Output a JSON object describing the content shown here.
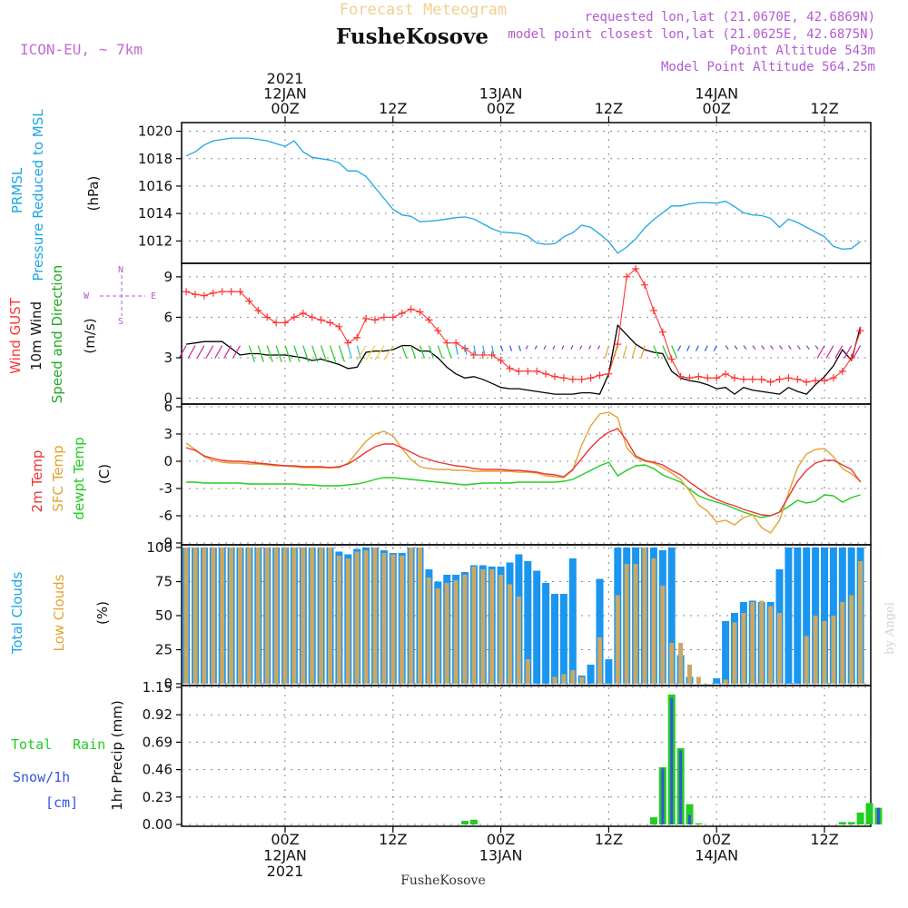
{
  "header": {
    "title": "Forecast Meteogram",
    "location": "FusheKosove",
    "model": "ICON-EU, ~ 7km",
    "requested": "requested lon,lat (21.0670E, 42.6869N)",
    "closest": "model point closest lon,lat (21.0625E, 42.6875N)",
    "point_alt": "Point Altitude 543m",
    "model_alt": "Model Point Altitude 564.25m",
    "footer_location": "FusheKosove",
    "credit": "by Angel"
  },
  "time_axis": {
    "top": [
      {
        "h": 0,
        "lines": [
          "2021",
          "12JAN",
          "00Z"
        ]
      },
      {
        "h": 12,
        "lines": [
          "12Z"
        ]
      },
      {
        "h": 24,
        "lines": [
          "13JAN",
          "00Z"
        ]
      },
      {
        "h": 36,
        "lines": [
          "12Z"
        ]
      },
      {
        "h": 48,
        "lines": [
          "14JAN",
          "00Z"
        ]
      },
      {
        "h": 60,
        "lines": [
          "12Z"
        ]
      }
    ],
    "bottom": [
      {
        "h": 0,
        "lines": [
          "00Z",
          "12JAN",
          "2021"
        ]
      },
      {
        "h": 12,
        "lines": [
          "12Z"
        ]
      },
      {
        "h": 24,
        "lines": [
          "00Z",
          "13JAN"
        ]
      },
      {
        "h": 36,
        "lines": [
          "12Z"
        ]
      },
      {
        "h": 48,
        "lines": [
          "00Z",
          "14JAN"
        ]
      },
      {
        "h": 60,
        "lines": [
          "12Z"
        ]
      }
    ]
  },
  "labels": {
    "prmsl": [
      "PRMSL",
      "Pressure Reduced to MSL",
      "(hPa)"
    ],
    "wind": [
      "Wind GUST",
      "10m Wind",
      "Speed and Direction",
      "(m/s)"
    ],
    "compass": [
      "N",
      "S",
      "W",
      "E"
    ],
    "temp": [
      "2m Temp",
      "SFC Temp",
      "dewpt Temp",
      "(C)"
    ],
    "cloud": [
      "Total Clouds",
      "Low Clouds",
      "(%)"
    ],
    "precip": [
      "Total",
      "Rain",
      "Snow/1h",
      "[cm]",
      "1hr Precip (mm)"
    ]
  },
  "colors": {
    "pressure": "#1ea6e6",
    "gust": "#ff3333",
    "wind": "#000000",
    "temp2m": "#ee3333",
    "sfc": "#e2a431",
    "dew": "#22cc22",
    "total_cloud": "#1a96f0",
    "low_cloud": "#c9a865",
    "rain": "#22cc22",
    "snow": "#3355dd",
    "axis_label_pressure": "#1ea6e6",
    "magenta": "#b45ad2"
  },
  "chart_data": [
    {
      "type": "line",
      "title": "PRMSL Pressure Reduced to MSL",
      "ylabel": "(hPa)",
      "ylim": [
        1010.5,
        1020.5
      ],
      "yticks": [
        1012,
        1014,
        1016,
        1018,
        1020
      ],
      "x_hours": [
        -11,
        -10,
        -9,
        -8,
        -7,
        -6,
        -5,
        -4,
        -3,
        -2,
        -1,
        0,
        1,
        2,
        3,
        4,
        5,
        6,
        7,
        8,
        9,
        10,
        11,
        12,
        13,
        14,
        15,
        16,
        17,
        18,
        19,
        20,
        21,
        22,
        23,
        24,
        25,
        26,
        27,
        28,
        29,
        30,
        31,
        32,
        33,
        34,
        35,
        36,
        37,
        38,
        39,
        40,
        41,
        42,
        43,
        44,
        45,
        46,
        47,
        48,
        49,
        50,
        51,
        52,
        53,
        54,
        55,
        56,
        57,
        58,
        59,
        60,
        61,
        62,
        63,
        64
      ],
      "series": [
        {
          "name": "PRMSL",
          "values": [
            1018.2,
            1018.5,
            1019.0,
            1019.3,
            1019.4,
            1019.5,
            1019.5,
            1019.5,
            1019.4,
            1019.3,
            1019.1,
            1018.9,
            1019.3,
            1018.5,
            1018.1,
            1018.0,
            1017.9,
            1017.7,
            1017.1,
            1017.1,
            1016.7,
            1015.9,
            1015.1,
            1014.3,
            1013.9,
            1013.8,
            1013.4,
            1013.45,
            1013.5,
            1013.6,
            1013.7,
            1013.75,
            1013.6,
            1013.25,
            1012.9,
            1012.65,
            1012.6,
            1012.55,
            1012.35,
            1011.85,
            1011.75,
            1011.8,
            1012.3,
            1012.6,
            1013.15,
            1013.0,
            1012.5,
            1011.95,
            1011.1,
            1011.55,
            1012.15,
            1012.95,
            1013.55,
            1014.05,
            1014.55,
            1014.55,
            1014.7,
            1014.8,
            1014.8,
            1014.75,
            1014.9,
            1014.5,
            1014.05,
            1013.9,
            1013.85,
            1013.65,
            1013.0,
            1013.6,
            1013.35,
            1013.0,
            1012.65,
            1012.3,
            1011.6,
            1011.4,
            1011.45,
            1011.95
          ]
        }
      ]
    },
    {
      "type": "line",
      "title": "Wind GUST / 10m Wind Speed and Direction",
      "ylabel": "(m/s)",
      "ylim": [
        -0.3,
        9.8
      ],
      "yticks": [
        0,
        3,
        6,
        9
      ],
      "x_hours": [
        -11,
        -10,
        -9,
        -8,
        -7,
        -6,
        -5,
        -4,
        -3,
        -2,
        -1,
        0,
        1,
        2,
        3,
        4,
        5,
        6,
        7,
        8,
        9,
        10,
        11,
        12,
        13,
        14,
        15,
        16,
        17,
        18,
        19,
        20,
        21,
        22,
        23,
        24,
        25,
        26,
        27,
        28,
        29,
        30,
        31,
        32,
        33,
        34,
        35,
        36,
        37,
        38,
        39,
        40,
        41,
        42,
        43,
        44,
        45,
        46,
        47,
        48,
        49,
        50,
        51,
        52,
        53,
        54,
        55,
        56,
        57,
        58,
        59,
        60,
        61,
        62,
        63,
        64
      ],
      "series": [
        {
          "name": "Wind GUST",
          "values": [
            7.9,
            7.7,
            7.6,
            7.8,
            7.9,
            7.9,
            7.9,
            7.2,
            6.5,
            6.0,
            5.6,
            5.6,
            6.0,
            6.3,
            6.0,
            5.8,
            5.6,
            5.3,
            4.1,
            4.5,
            5.9,
            5.8,
            6.0,
            6.0,
            6.3,
            6.6,
            6.4,
            5.8,
            5.0,
            4.1,
            4.1,
            3.7,
            3.2,
            3.2,
            3.2,
            2.8,
            2.2,
            2.0,
            2.0,
            2.0,
            1.8,
            1.6,
            1.5,
            1.4,
            1.4,
            1.5,
            1.7,
            1.8,
            4.0,
            9.0,
            9.6,
            8.4,
            6.5,
            4.9,
            2.9,
            1.6,
            1.5,
            1.6,
            1.5,
            1.5,
            1.8,
            1.5,
            1.4,
            1.4,
            1.4,
            1.2,
            1.4,
            1.5,
            1.4,
            1.2,
            1.3,
            1.3,
            1.5,
            2.0,
            3.0,
            5.0
          ]
        },
        {
          "name": "10m Wind",
          "values": [
            4.0,
            4.1,
            4.2,
            4.2,
            4.2,
            3.7,
            3.2,
            3.3,
            3.3,
            3.2,
            3.2,
            3.2,
            3.1,
            3.0,
            2.8,
            2.9,
            2.7,
            2.5,
            2.2,
            2.3,
            3.4,
            3.5,
            3.5,
            3.6,
            3.9,
            3.9,
            3.5,
            3.5,
            3.0,
            2.3,
            1.8,
            1.5,
            1.6,
            1.4,
            1.1,
            0.8,
            0.7,
            0.7,
            0.6,
            0.5,
            0.4,
            0.3,
            0.3,
            0.3,
            0.4,
            0.4,
            0.3,
            1.8,
            5.4,
            4.7,
            4.0,
            3.6,
            3.4,
            3.3,
            2.0,
            1.5,
            1.3,
            1.2,
            1.0,
            0.7,
            0.8,
            0.3,
            0.8,
            0.6,
            0.5,
            0.4,
            0.3,
            0.8,
            0.5,
            0.3,
            1.0,
            1.6,
            2.4,
            3.6,
            2.8,
            5.3
          ]
        }
      ]
    },
    {
      "type": "line",
      "title": "2m Temp / SFC Temp / dewpt Temp",
      "ylabel": "(C)",
      "ylim": [
        -9,
        6
      ],
      "yticks": [
        -9,
        -6,
        -3,
        0,
        3,
        6
      ],
      "x_hours": [
        -11,
        -10,
        -9,
        -8,
        -7,
        -6,
        -5,
        -4,
        -3,
        -2,
        -1,
        0,
        1,
        2,
        3,
        4,
        5,
        6,
        7,
        8,
        9,
        10,
        11,
        12,
        13,
        14,
        15,
        16,
        17,
        18,
        19,
        20,
        21,
        22,
        23,
        24,
        25,
        26,
        27,
        28,
        29,
        30,
        31,
        32,
        33,
        34,
        35,
        36,
        37,
        38,
        39,
        40,
        41,
        42,
        43,
        44,
        45,
        46,
        47,
        48,
        49,
        50,
        51,
        52,
        53,
        54,
        55,
        56,
        57,
        58,
        59,
        60,
        61,
        62,
        63,
        64
      ],
      "series": [
        {
          "name": "2m Temp",
          "values": [
            1.5,
            1.2,
            0.6,
            0.3,
            0.1,
            0.0,
            0.0,
            -0.1,
            -0.2,
            -0.3,
            -0.4,
            -0.5,
            -0.5,
            -0.6,
            -0.6,
            -0.6,
            -0.7,
            -0.6,
            -0.3,
            0.3,
            1.0,
            1.6,
            1.9,
            1.9,
            1.5,
            1.0,
            0.5,
            0.2,
            -0.1,
            -0.3,
            -0.5,
            -0.6,
            -0.8,
            -0.9,
            -0.9,
            -0.9,
            -1.0,
            -1.0,
            -1.1,
            -1.2,
            -1.4,
            -1.5,
            -1.7,
            -0.9,
            0.3,
            1.5,
            2.5,
            3.2,
            3.6,
            2.3,
            0.6,
            0.1,
            -0.1,
            -0.4,
            -1.0,
            -1.5,
            -2.3,
            -3.0,
            -3.7,
            -4.2,
            -4.6,
            -4.9,
            -5.3,
            -5.6,
            -5.9,
            -6.0,
            -5.6,
            -3.9,
            -2.2,
            -1.0,
            -0.2,
            0.1,
            0.1,
            -0.4,
            -0.9,
            -2.3
          ]
        },
        {
          "name": "SFC Temp",
          "values": [
            2.0,
            1.3,
            0.5,
            0.1,
            -0.1,
            -0.2,
            -0.2,
            -0.3,
            -0.3,
            -0.4,
            -0.5,
            -0.5,
            -0.6,
            -0.7,
            -0.7,
            -0.7,
            -0.7,
            -0.7,
            -0.2,
            1.0,
            2.2,
            3.0,
            3.3,
            2.8,
            1.4,
            0.2,
            -0.6,
            -0.8,
            -0.9,
            -0.9,
            -1.0,
            -1.0,
            -1.1,
            -1.1,
            -1.1,
            -1.1,
            -1.1,
            -1.2,
            -1.2,
            -1.3,
            -1.6,
            -1.7,
            -1.8,
            -1.0,
            1.8,
            3.9,
            5.2,
            5.4,
            4.8,
            1.5,
            0.4,
            0.0,
            -0.2,
            -0.7,
            -1.3,
            -2.0,
            -3.3,
            -4.8,
            -5.5,
            -6.7,
            -6.5,
            -7.0,
            -6.2,
            -5.9,
            -7.3,
            -7.9,
            -6.5,
            -3.5,
            -0.7,
            0.8,
            1.3,
            1.4,
            0.5,
            -0.8,
            -1.4,
            -2.2
          ]
        },
        {
          "name": "dewpt Temp",
          "values": [
            -2.3,
            -2.3,
            -2.4,
            -2.4,
            -2.4,
            -2.4,
            -2.4,
            -2.5,
            -2.5,
            -2.5,
            -2.5,
            -2.5,
            -2.5,
            -2.6,
            -2.6,
            -2.7,
            -2.7,
            -2.7,
            -2.6,
            -2.5,
            -2.3,
            -2.0,
            -1.8,
            -1.8,
            -1.9,
            -2.0,
            -2.1,
            -2.2,
            -2.3,
            -2.4,
            -2.5,
            -2.6,
            -2.5,
            -2.4,
            -2.4,
            -2.4,
            -2.4,
            -2.3,
            -2.3,
            -2.3,
            -2.3,
            -2.3,
            -2.2,
            -2.0,
            -1.5,
            -1.0,
            -0.5,
            -0.1,
            -1.6,
            -1.0,
            -0.5,
            -0.4,
            -0.8,
            -1.5,
            -1.9,
            -2.3,
            -3.1,
            -3.8,
            -4.2,
            -4.5,
            -4.8,
            -5.2,
            -5.6,
            -5.9,
            -6.2,
            -6.0,
            -5.6,
            -5.0,
            -4.3,
            -4.6,
            -4.4,
            -3.7,
            -3.8,
            -4.5,
            -4.0,
            -3.7
          ]
        }
      ]
    },
    {
      "type": "bar",
      "title": "Total Clouds / Low Clouds",
      "ylabel": "(%)",
      "ylim": [
        0,
        100
      ],
      "yticks": [
        0,
        25,
        50,
        75,
        100
      ],
      "x_hours": [
        -11,
        -10,
        -9,
        -8,
        -7,
        -6,
        -5,
        -4,
        -3,
        -2,
        -1,
        0,
        1,
        2,
        3,
        4,
        5,
        6,
        7,
        8,
        9,
        10,
        11,
        12,
        13,
        14,
        15,
        16,
        17,
        18,
        19,
        20,
        21,
        22,
        23,
        24,
        25,
        26,
        27,
        28,
        29,
        30,
        31,
        32,
        33,
        34,
        35,
        36,
        37,
        38,
        39,
        40,
        41,
        42,
        43,
        44,
        45,
        46,
        47,
        48,
        49,
        50,
        51,
        52,
        53,
        54,
        55,
        56,
        57,
        58,
        59,
        60,
        61,
        62,
        63,
        64
      ],
      "series": [
        {
          "name": "Total Clouds",
          "values": [
            100,
            100,
            100,
            100,
            100,
            100,
            100,
            100,
            100,
            100,
            100,
            100,
            100,
            100,
            100,
            100,
            100,
            97,
            95,
            99,
            100,
            100,
            98,
            96,
            96,
            100,
            100,
            84,
            75,
            80,
            80,
            82,
            87,
            87,
            86,
            86,
            89,
            95,
            90,
            83,
            74,
            66,
            66,
            92,
            6,
            14,
            77,
            18,
            100,
            100,
            100,
            100,
            100,
            98,
            100,
            21,
            5,
            0,
            0,
            4,
            46,
            52,
            60,
            61,
            60,
            60,
            84,
            100,
            100,
            100,
            100,
            100,
            100,
            100,
            100,
            100
          ]
        },
        {
          "name": "Low Clouds",
          "values": [
            100,
            100,
            100,
            100,
            100,
            100,
            100,
            100,
            100,
            100,
            100,
            100,
            100,
            100,
            100,
            100,
            100,
            94,
            92,
            97,
            98,
            100,
            96,
            95,
            94,
            100,
            100,
            78,
            70,
            74,
            76,
            80,
            86,
            84,
            84,
            80,
            73,
            64,
            18,
            0,
            0,
            5,
            7,
            10,
            5,
            0,
            34,
            0,
            65,
            88,
            88,
            100,
            92,
            72,
            30,
            30,
            14,
            5,
            0,
            0,
            3,
            45,
            52,
            60,
            61,
            57,
            52,
            0,
            0,
            35,
            50,
            46,
            50,
            60,
            65,
            90
          ]
        }
      ]
    },
    {
      "type": "bar",
      "title": "1hr Precip (mm)",
      "ylabel": "1hr Precip (mm)",
      "ylim": [
        0,
        1.15
      ],
      "yticks": [
        0,
        0.23,
        0.46,
        0.69,
        0.92,
        1.15
      ],
      "x_hours": [
        20,
        21,
        41,
        42,
        43,
        44,
        45,
        46,
        62,
        63,
        64,
        65,
        66
      ],
      "series": [
        {
          "name": "Total Rain",
          "values": [
            0.03,
            0.04,
            0.06,
            0.48,
            1.09,
            0.64,
            0.17,
            0.01,
            0.02,
            0.02,
            0.1,
            0.18,
            0.14
          ]
        },
        {
          "name": "Snow/1h",
          "values": [
            0.0,
            0.0,
            0.0,
            0.47,
            1.06,
            0.62,
            0.08,
            0.0,
            0.0,
            0.0,
            0.0,
            0.0,
            0.14
          ]
        }
      ]
    }
  ]
}
